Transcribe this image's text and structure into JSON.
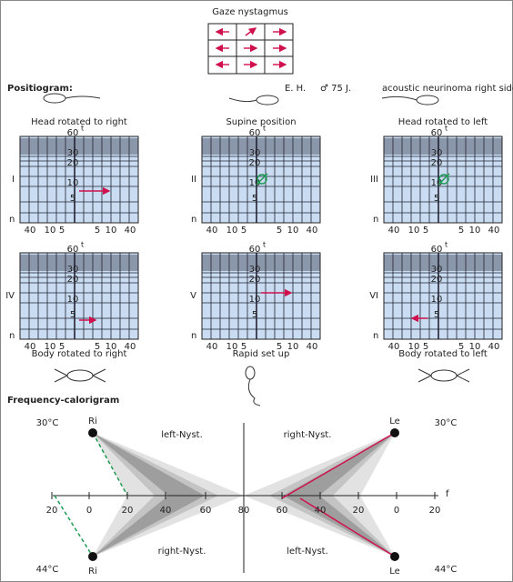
{
  "gaze": {
    "title": "Gaze nystagmus"
  },
  "positiogram": {
    "title": "Positiogram:",
    "patient": "E. H.",
    "sex_age": "♂ 75 J.",
    "diagnosis": "acoustic neurinoma right side",
    "axis": {
      "top": "60",
      "unit": "t",
      "levels": [
        "30",
        "20",
        "10",
        "5"
      ],
      "bottom_label": "n",
      "x_labels": [
        "40",
        "10",
        "5",
        "5",
        "10",
        "40"
      ]
    },
    "panels": [
      {
        "title": "Head rotated to right",
        "numeral": "I"
      },
      {
        "title": "Supine position",
        "numeral": "II"
      },
      {
        "title": "Head rotated to left",
        "numeral": "III"
      },
      {
        "title": "Body rotated to right",
        "numeral": "IV"
      },
      {
        "title": "Rapid set up",
        "numeral": "V"
      },
      {
        "title": "Body rotated to left",
        "numeral": "VI"
      }
    ]
  },
  "calorigram": {
    "title": "Frequency-calorigram",
    "axis_labels": [
      "20",
      "0",
      "20",
      "40",
      "60",
      "80",
      "60",
      "40",
      "20",
      "0",
      "20"
    ],
    "axis_unit": "f",
    "top": {
      "temp_left": "30°C",
      "left_ear": "Ri",
      "left_nyst": "left-Nyst.",
      "right_nyst": "right-Nyst.",
      "right_ear": "Le",
      "temp_right": "30°C"
    },
    "bottom": {
      "temp_left": "44°C",
      "left_ear": "Ri",
      "left_nyst": "right-Nyst.",
      "right_nyst": "left-Nyst.",
      "right_ear": "Le",
      "temp_right": "44°C"
    }
  }
}
